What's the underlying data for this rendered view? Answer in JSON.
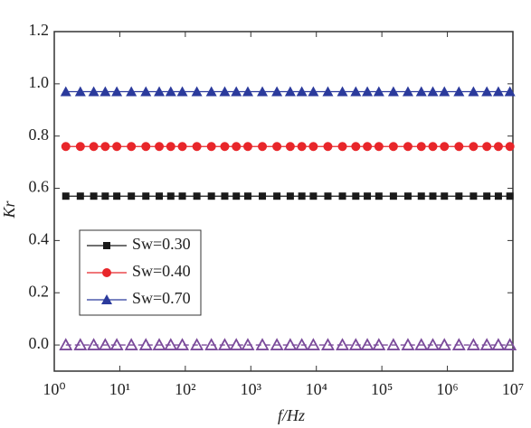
{
  "chart_data": {
    "type": "line",
    "xlabel": "f/Hz",
    "ylabel": "Kr",
    "xscale": "log",
    "xlim": [
      1,
      10000000
    ],
    "xticks": [
      {
        "value": 1,
        "label": "10⁰"
      },
      {
        "value": 10,
        "label": "10¹"
      },
      {
        "value": 100,
        "label": "10²"
      },
      {
        "value": 1000,
        "label": "10³"
      },
      {
        "value": 10000,
        "label": "10⁴"
      },
      {
        "value": 100000,
        "label": "10⁵"
      },
      {
        "value": 1000000,
        "label": "10⁶"
      },
      {
        "value": 10000000,
        "label": "10⁷"
      }
    ],
    "ylim": [
      -0.1,
      1.2
    ],
    "yticks": [
      {
        "value": 0,
        "label": "0.0"
      },
      0.2,
      0.4,
      0.6,
      0.8,
      {
        "value": 1,
        "label": "1.0"
      },
      1.2
    ],
    "legend": "lower left",
    "x": [
      1.5,
      2.5,
      4,
      6,
      9,
      15,
      25,
      40,
      60,
      90,
      150,
      250,
      400,
      600,
      900,
      1500,
      2500,
      4000,
      6000,
      9000,
      15000,
      25000,
      40000,
      60000,
      90000,
      150000,
      250000,
      400000,
      600000,
      900000,
      1500000,
      2500000,
      4000000,
      6000000,
      9000000
    ],
    "series": [
      {
        "name": "Sw=0.30",
        "color": "#1a1a1a",
        "marker": "square",
        "values": [
          0.57,
          0.57,
          0.57,
          0.57,
          0.57,
          0.57,
          0.57,
          0.57,
          0.57,
          0.57,
          0.57,
          0.57,
          0.57,
          0.57,
          0.57,
          0.57,
          0.57,
          0.57,
          0.57,
          0.57,
          0.57,
          0.57,
          0.57,
          0.57,
          0.57,
          0.57,
          0.57,
          0.57,
          0.57,
          0.57,
          0.57,
          0.57,
          0.57,
          0.57,
          0.57
        ]
      },
      {
        "name": "Sw=0.40",
        "color": "#e8262a",
        "marker": "circle",
        "values": [
          0.76,
          0.76,
          0.76,
          0.76,
          0.76,
          0.76,
          0.76,
          0.76,
          0.76,
          0.76,
          0.76,
          0.76,
          0.76,
          0.76,
          0.76,
          0.76,
          0.76,
          0.76,
          0.76,
          0.76,
          0.76,
          0.76,
          0.76,
          0.76,
          0.76,
          0.76,
          0.76,
          0.76,
          0.76,
          0.76,
          0.76,
          0.76,
          0.76,
          0.76,
          0.76
        ]
      },
      {
        "name": "Sw=0.70",
        "color": "#2b3a9c",
        "marker": "triangle",
        "values": [
          0.97,
          0.97,
          0.97,
          0.97,
          0.97,
          0.97,
          0.97,
          0.97,
          0.97,
          0.97,
          0.97,
          0.97,
          0.97,
          0.97,
          0.97,
          0.97,
          0.97,
          0.97,
          0.97,
          0.97,
          0.97,
          0.97,
          0.97,
          0.97,
          0.97,
          0.97,
          0.97,
          0.97,
          0.97,
          0.97,
          0.97,
          0.97,
          0.97,
          0.97,
          0.97
        ]
      },
      {
        "color": "#7a4a9a",
        "marker": "open-triangle",
        "dashed": true,
        "values": [
          0,
          0,
          0,
          0,
          0,
          0,
          0,
          0,
          0,
          0,
          0,
          0,
          0,
          0,
          0,
          0,
          0,
          0,
          0,
          0,
          0,
          0,
          0,
          0,
          0,
          0,
          0,
          0,
          0,
          0,
          0,
          0,
          0,
          0,
          0
        ]
      }
    ]
  }
}
